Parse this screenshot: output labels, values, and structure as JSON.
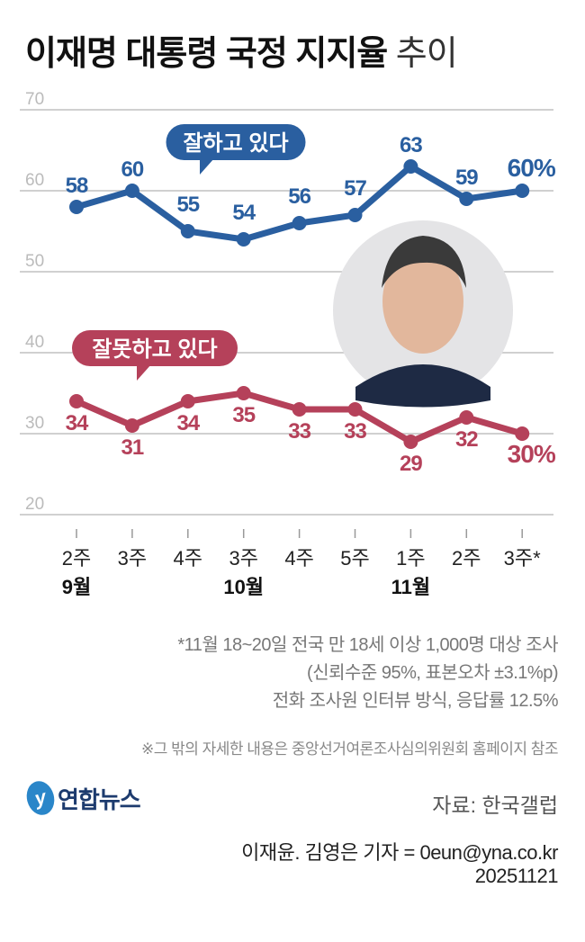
{
  "title": {
    "main": "이재명 대통령 국정 지지율",
    "sub": "추이"
  },
  "chart_data": {
    "type": "line",
    "title": "이재명 대통령 국정 지지율 추이",
    "categories": [
      "2주",
      "3주",
      "4주",
      "3주",
      "4주",
      "5주",
      "1주",
      "2주",
      "3주*"
    ],
    "month_labels": [
      {
        "index": 0,
        "label": "9월"
      },
      {
        "index": 3,
        "label": "10월"
      },
      {
        "index": 6,
        "label": "11월"
      }
    ],
    "ylim": [
      20,
      70
    ],
    "yticks": [
      20,
      30,
      40,
      50,
      60,
      70
    ],
    "grid": true,
    "series": [
      {
        "name": "잘하고 있다",
        "color": "#2a5fa0",
        "values": [
          58,
          60,
          55,
          54,
          56,
          57,
          63,
          59,
          60
        ],
        "last_label": "60%"
      },
      {
        "name": "잘못하고 있다",
        "color": "#b5415a",
        "values": [
          34,
          31,
          34,
          35,
          33,
          33,
          29,
          32,
          30
        ],
        "last_label": "30%"
      }
    ]
  },
  "notes": {
    "lines": [
      "*11월 18~20일 전국 만 18세 이상 1,000명 대상 조사",
      "(신뢰수준 95%, 표본오차 ±3.1%p)",
      "전화 조사원 인터뷰 방식, 응답률 12.5%"
    ],
    "extra": "※그 밖의 자세한 내용은 중앙선거여론조사심의위원회 홈페이지 참조"
  },
  "logo": {
    "mark": "y",
    "text": "연합뉴스"
  },
  "source": "자료: 한국갤럽",
  "credit": {
    "line1": "이재윤. 김영은 기자 = 0eun@yna.co.kr",
    "line2": "20251121"
  }
}
